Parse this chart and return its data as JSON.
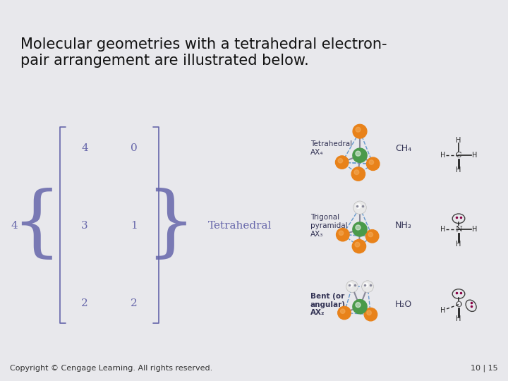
{
  "title_text": "Molecular geometries with a tetrahedral electron-\npair arrangement are illustrated below.",
  "title_fontsize": 15,
  "orange_bar_color": "#E8821A",
  "header_bg_color": "#E8E8EC",
  "content_bg_color": "#C0B8D8",
  "footer_text_left": "Copyright © Cengage Learning. All rights reserved.",
  "footer_text_right": "10 | 15",
  "footer_fontsize": 8,
  "footer_bg_color": "#E0E0E4",
  "matrix_label": "4",
  "matrix_rows": [
    [
      "4",
      "0"
    ],
    [
      "3",
      "1"
    ],
    [
      "2",
      "2"
    ]
  ],
  "arrangement_label": "Tetrahedral",
  "geometry_labels": [
    "Tetrahedral\nAX₄",
    "Trigonal\npyramidal\nAX₃",
    "Bent (or\nangular)\nAX₂"
  ],
  "molecule_labels": [
    "CH₄",
    "NH₃",
    "H₂O"
  ],
  "text_color": "#6666AA",
  "dark_footer_color": "#111111",
  "orange_atom": "#E8821A",
  "green_atom": "#4A9A4A",
  "white_atom": "#E0E0E0",
  "bond_color": "#8888AA"
}
